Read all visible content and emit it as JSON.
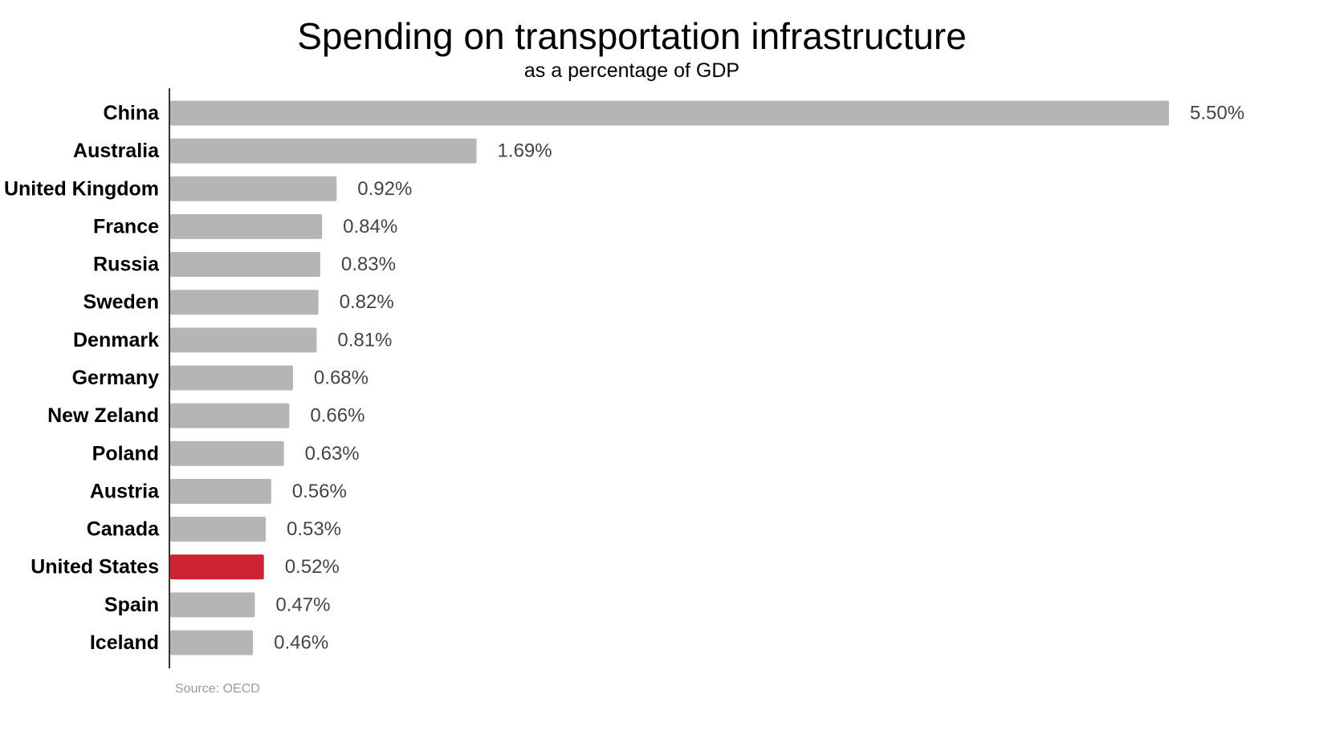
{
  "chart_data": {
    "type": "bar",
    "orientation": "horizontal",
    "title": "Spending on transportation infrastructure",
    "subtitle": "as a percentage of GDP",
    "categories": [
      "China",
      "Australia",
      "United Kingdom",
      "France",
      "Russia",
      "Sweden",
      "Denmark",
      "Germany",
      "New Zeland",
      "Poland",
      "Austria",
      "Canada",
      "United States",
      "Spain",
      "Iceland"
    ],
    "values": [
      5.5,
      1.69,
      0.92,
      0.84,
      0.83,
      0.82,
      0.81,
      0.68,
      0.66,
      0.63,
      0.56,
      0.53,
      0.52,
      0.47,
      0.46
    ],
    "value_labels": [
      "5.50%",
      "1.69%",
      "0.92%",
      "0.84%",
      "0.83%",
      "0.82%",
      "0.81%",
      "0.68%",
      "0.66%",
      "0.63%",
      "0.56%",
      "0.53%",
      "0.52%",
      "0.47%",
      "0.46%"
    ],
    "highlight": "United States",
    "xlim": [
      0,
      5.5
    ],
    "grid": false,
    "legend": "none",
    "colors": {
      "bar": "#b5b5b5",
      "highlight": "#cc2233",
      "axis": "#333333",
      "label": "#000000",
      "value_label": "#444444"
    }
  },
  "source": "Source: OECD"
}
